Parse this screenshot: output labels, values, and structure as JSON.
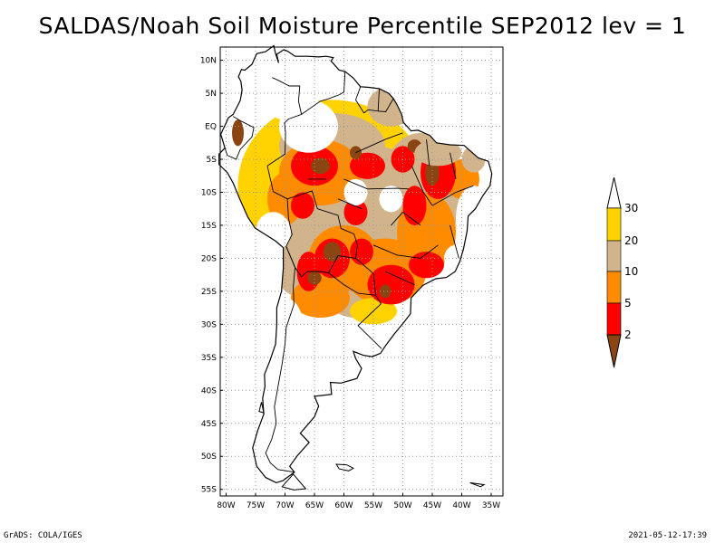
{
  "title": "SALDAS/Noah Soil Moisture Percentile SEP2012 lev = 1",
  "footer": {
    "left": "GrADS: COLA/IGES",
    "right": "2021-05-12-17:39"
  },
  "map": {
    "lat_labels": [
      "10N",
      "5N",
      "EQ",
      "5S",
      "10S",
      "15S",
      "20S",
      "25S",
      "30S",
      "35S",
      "40S",
      "45S",
      "50S",
      "55S"
    ],
    "lon_labels": [
      "80W",
      "75W",
      "70W",
      "65W",
      "60W",
      "55W",
      "50W",
      "45W",
      "40W",
      "35W"
    ],
    "lon_range": [
      -81,
      -33
    ],
    "lat_range": [
      -56,
      12
    ],
    "grid": "dotted"
  },
  "legend": {
    "labels": [
      "30",
      "20",
      "10",
      "5",
      "2"
    ],
    "colors": {
      "above_30": "#ffffff",
      "20_30": "#ffd200",
      "10_20": "#d2b48c",
      "5_10": "#ff8c00",
      "2_5": "#ff0000",
      "below_2": "#8b4513"
    }
  }
}
